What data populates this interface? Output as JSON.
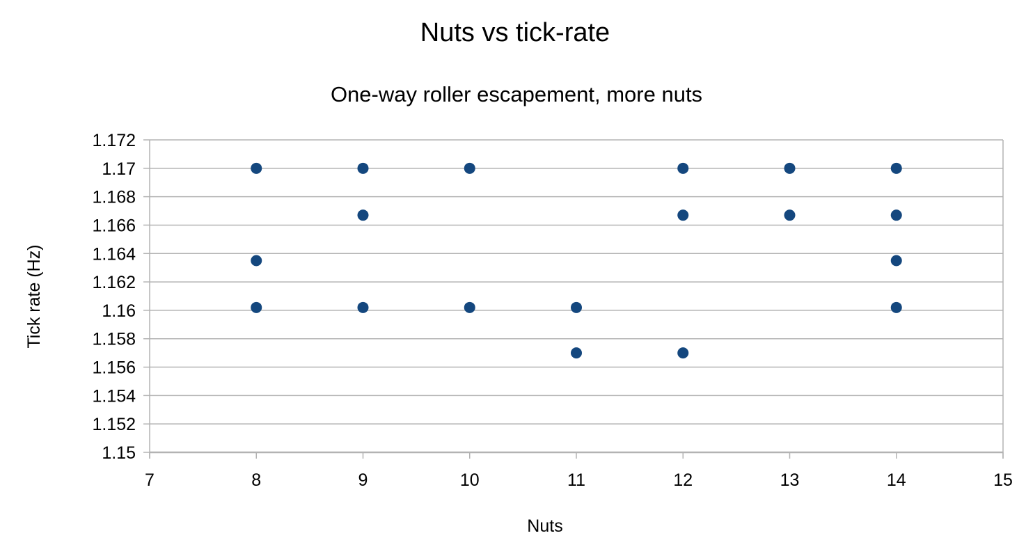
{
  "chart_data": {
    "type": "scatter",
    "title": "Nuts vs tick-rate",
    "subtitle": "One-way roller escapement, more nuts",
    "xlabel": "Nuts",
    "ylabel": "Tick rate (Hz)",
    "xlim": [
      7,
      15
    ],
    "ylim": [
      1.15,
      1.172
    ],
    "grid": "horizontal-only",
    "legend": "none",
    "x_ticks": [
      {
        "value": 7,
        "label": "7"
      },
      {
        "value": 8,
        "label": "8"
      },
      {
        "value": 9,
        "label": "9"
      },
      {
        "value": 10,
        "label": "10"
      },
      {
        "value": 11,
        "label": "11"
      },
      {
        "value": 12,
        "label": "12"
      },
      {
        "value": 13,
        "label": "13"
      },
      {
        "value": 14,
        "label": "14"
      },
      {
        "value": 15,
        "label": "15"
      }
    ],
    "y_ticks": [
      {
        "value": 1.15,
        "label": "1.15"
      },
      {
        "value": 1.152,
        "label": "1.152"
      },
      {
        "value": 1.154,
        "label": "1.154"
      },
      {
        "value": 1.156,
        "label": "1.156"
      },
      {
        "value": 1.158,
        "label": "1.158"
      },
      {
        "value": 1.16,
        "label": "1.16"
      },
      {
        "value": 1.162,
        "label": "1.162"
      },
      {
        "value": 1.164,
        "label": "1.164"
      },
      {
        "value": 1.166,
        "label": "1.166"
      },
      {
        "value": 1.168,
        "label": "1.168"
      },
      {
        "value": 1.17,
        "label": "1.17"
      },
      {
        "value": 1.172,
        "label": "1.172"
      }
    ],
    "series": [
      {
        "name": "tick-rate",
        "color": "#14477e",
        "points": [
          {
            "x": 8,
            "y": 1.17
          },
          {
            "x": 9,
            "y": 1.17
          },
          {
            "x": 10,
            "y": 1.17
          },
          {
            "x": 12,
            "y": 1.17
          },
          {
            "x": 13,
            "y": 1.17
          },
          {
            "x": 14,
            "y": 1.17
          },
          {
            "x": 9,
            "y": 1.1667
          },
          {
            "x": 12,
            "y": 1.1667
          },
          {
            "x": 13,
            "y": 1.1667
          },
          {
            "x": 14,
            "y": 1.1667
          },
          {
            "x": 8,
            "y": 1.1635
          },
          {
            "x": 14,
            "y": 1.1635
          },
          {
            "x": 8,
            "y": 1.1602
          },
          {
            "x": 9,
            "y": 1.1602
          },
          {
            "x": 10,
            "y": 1.1602
          },
          {
            "x": 11,
            "y": 1.1602
          },
          {
            "x": 14,
            "y": 1.1602
          },
          {
            "x": 11,
            "y": 1.157
          },
          {
            "x": 12,
            "y": 1.157
          }
        ]
      }
    ]
  },
  "colors": {
    "background": "#ffffff",
    "grid": "#b3b3b3",
    "axis": "#b3b3b3",
    "text": "#000000",
    "point": "#14477e"
  }
}
